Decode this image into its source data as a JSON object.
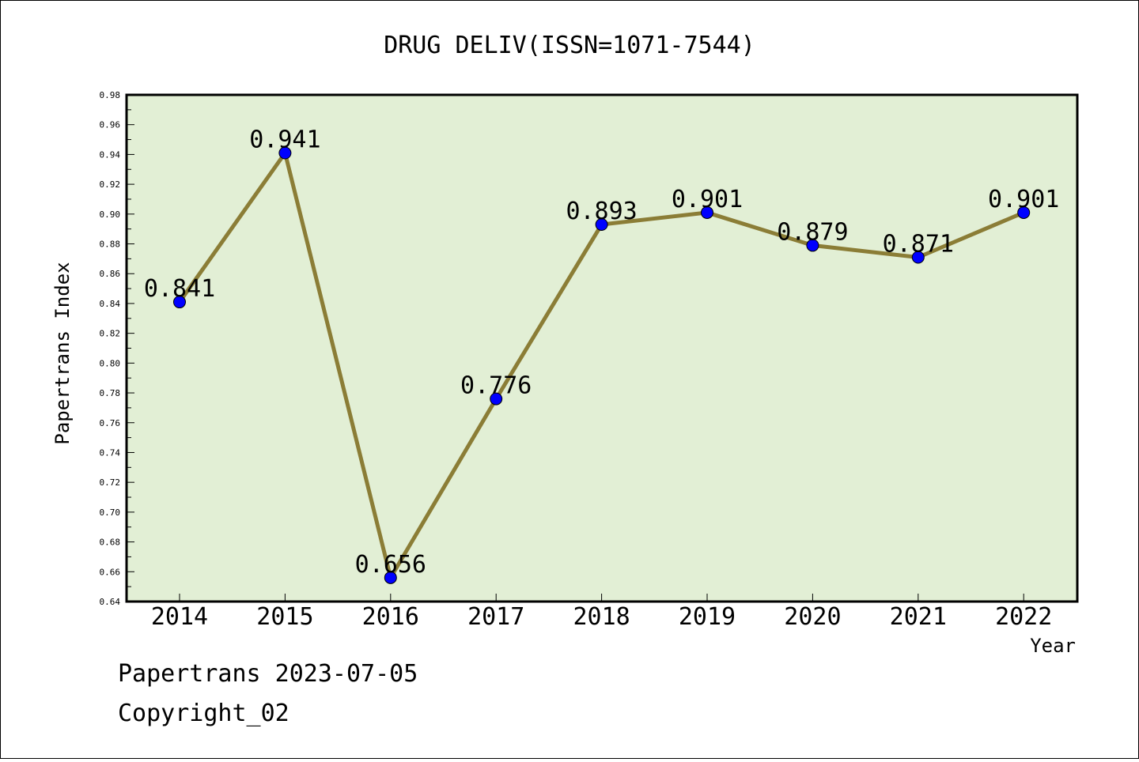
{
  "chart_data": {
    "type": "line",
    "title": "DRUG DELIV(ISSN=1071-7544)",
    "xlabel": "Year",
    "ylabel": "Papertrans Index",
    "categories": [
      "2014",
      "2015",
      "2016",
      "2017",
      "2018",
      "2019",
      "2020",
      "2021",
      "2022"
    ],
    "series": [
      {
        "values": [
          0.841,
          0.941,
          0.656,
          0.776,
          0.893,
          0.901,
          0.879,
          0.871,
          0.901
        ]
      }
    ],
    "data_labels": [
      "0.841",
      "0.941",
      "0.656",
      "0.776",
      "0.893",
      "0.901",
      "0.879",
      "0.871",
      "0.901"
    ],
    "ylim": [
      0.64,
      0.98
    ],
    "yticks": [
      "0.64",
      "0.66",
      "0.68",
      "0.70",
      "0.72",
      "0.74",
      "0.76",
      "0.78",
      "0.80",
      "0.82",
      "0.84",
      "0.86",
      "0.88",
      "0.90",
      "0.92",
      "0.94",
      "0.96",
      "0.98"
    ],
    "grid": false,
    "colors": {
      "plot_background": "#e2efd5",
      "line": "#8b7d36",
      "marker": "#0000ff"
    }
  },
  "footer": {
    "line1": "Papertrans 2023-07-05",
    "line2": "Copyright_02"
  }
}
